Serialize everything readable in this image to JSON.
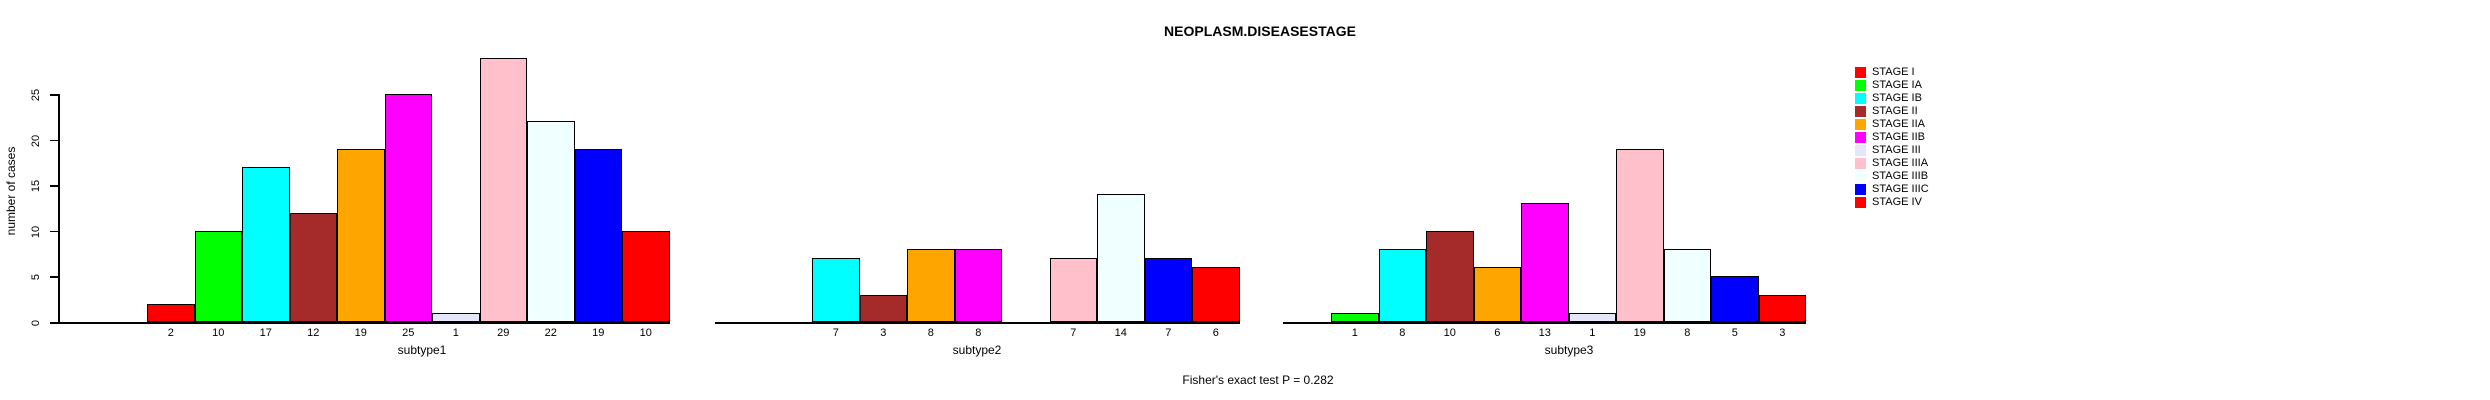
{
  "title": "NEOPLASM.DISEASESTAGE",
  "footer": {
    "text": "Fisher's exact test P = 0.282"
  },
  "y_axis": {
    "label": "number of cases",
    "ticks": [
      0,
      5,
      10,
      15,
      20,
      25
    ]
  },
  "legend": {
    "position": "right",
    "items": [
      {
        "label": "STAGE I",
        "color": "#FF0000"
      },
      {
        "label": "STAGE IA",
        "color": "#00FF00"
      },
      {
        "label": "STAGE IB",
        "color": "#00FFFF"
      },
      {
        "label": "STAGE II",
        "color": "#A52A2A"
      },
      {
        "label": "STAGE IIA",
        "color": "#FFA500"
      },
      {
        "label": "STAGE IIB",
        "color": "#FF00FF"
      },
      {
        "label": "STAGE III",
        "color": "#E6E6FA"
      },
      {
        "label": "STAGE IIIA",
        "color": "#FFC0CB"
      },
      {
        "label": "STAGE IIIB",
        "color": "#F0FFFF"
      },
      {
        "label": "STAGE IIIC",
        "color": "#0000FF"
      },
      {
        "label": "STAGE IV",
        "color": "#FF0000"
      }
    ]
  },
  "chart_data": [
    {
      "type": "bar",
      "title": "NEOPLASM.DISEASESTAGE",
      "xlabel": "subtype1",
      "ylabel": "number of cases",
      "ylim": [
        0,
        29.5
      ],
      "yticks": [
        0,
        5,
        10,
        15,
        20,
        25
      ],
      "grid": false,
      "categories": [
        "STAGE I",
        "STAGE IA",
        "STAGE IB",
        "STAGE II",
        "STAGE IIA",
        "STAGE IIB",
        "STAGE III",
        "STAGE IIIA",
        "STAGE IIIB",
        "STAGE IIIC",
        "STAGE IV"
      ],
      "values": [
        2,
        10,
        17,
        12,
        19,
        25,
        1,
        29,
        22,
        19,
        10
      ],
      "colors": [
        "#FF0000",
        "#00FF00",
        "#00FFFF",
        "#A52A2A",
        "#FFA500",
        "#FF00FF",
        "#E6E6FA",
        "#FFC0CB",
        "#F0FFFF",
        "#0000FF",
        "#FF0000"
      ],
      "bar_labels": [
        "2",
        "10",
        "17",
        "12",
        "19",
        "25",
        "1",
        "29",
        "22",
        "19",
        "10"
      ]
    },
    {
      "type": "bar",
      "title": "NEOPLASM.DISEASESTAGE",
      "xlabel": "subtype2",
      "ylabel": "number of cases",
      "ylim": [
        0,
        29.5
      ],
      "yticks": [
        0,
        5,
        10,
        15,
        20,
        25
      ],
      "grid": false,
      "categories": [
        "STAGE I",
        "STAGE IA",
        "STAGE IB",
        "STAGE II",
        "STAGE IIA",
        "STAGE IIB",
        "STAGE III",
        "STAGE IIIA",
        "STAGE IIIB",
        "STAGE IIIC",
        "STAGE IV"
      ],
      "values": [
        0,
        0,
        7,
        3,
        8,
        8,
        0,
        7,
        14,
        7,
        6
      ],
      "colors": [
        "#FF0000",
        "#00FF00",
        "#00FFFF",
        "#A52A2A",
        "#FFA500",
        "#FF00FF",
        "#E6E6FA",
        "#FFC0CB",
        "#F0FFFF",
        "#0000FF",
        "#FF0000"
      ],
      "bar_labels": [
        "",
        "",
        "7",
        "3",
        "8",
        "8",
        "",
        "7",
        "14",
        "7",
        "6"
      ]
    },
    {
      "type": "bar",
      "title": "NEOPLASM.DISEASESTAGE",
      "xlabel": "subtype3",
      "ylabel": "number of cases",
      "ylim": [
        0,
        29.5
      ],
      "yticks": [
        0,
        5,
        10,
        15,
        20,
        25
      ],
      "grid": false,
      "categories": [
        "STAGE I",
        "STAGE IA",
        "STAGE IB",
        "STAGE II",
        "STAGE IIA",
        "STAGE IIB",
        "STAGE III",
        "STAGE IIIA",
        "STAGE IIIB",
        "STAGE IIIC",
        "STAGE IV"
      ],
      "values": [
        0,
        1,
        8,
        10,
        6,
        13,
        1,
        19,
        8,
        5,
        3
      ],
      "colors": [
        "#FF0000",
        "#00FF00",
        "#00FFFF",
        "#A52A2A",
        "#FFA500",
        "#FF00FF",
        "#E6E6FA",
        "#FFC0CB",
        "#F0FFFF",
        "#0000FF",
        "#FF0000"
      ],
      "bar_labels": [
        "",
        "1",
        "8",
        "10",
        "6",
        "13",
        "1",
        "19",
        "8",
        "5",
        "3"
      ]
    }
  ]
}
